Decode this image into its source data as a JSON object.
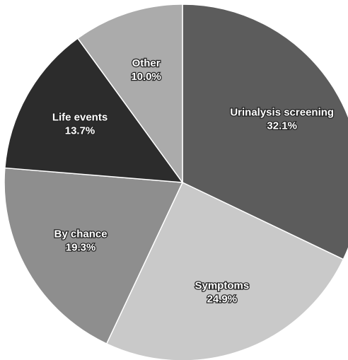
{
  "chart_data": {
    "type": "pie",
    "categories": [
      "Urinalysis screening",
      "Symptoms",
      "By chance",
      "Life events",
      "Other"
    ],
    "values": [
      32.1,
      24.9,
      19.3,
      13.7,
      10.0
    ],
    "value_labels": [
      "32.1%",
      "24.9%",
      "19.3%",
      "13.7%",
      "10.0%"
    ],
    "colors": [
      "#5c5c5c",
      "#c9c9c9",
      "#8e8e8e",
      "#2c2c2c",
      "#ababab"
    ]
  }
}
